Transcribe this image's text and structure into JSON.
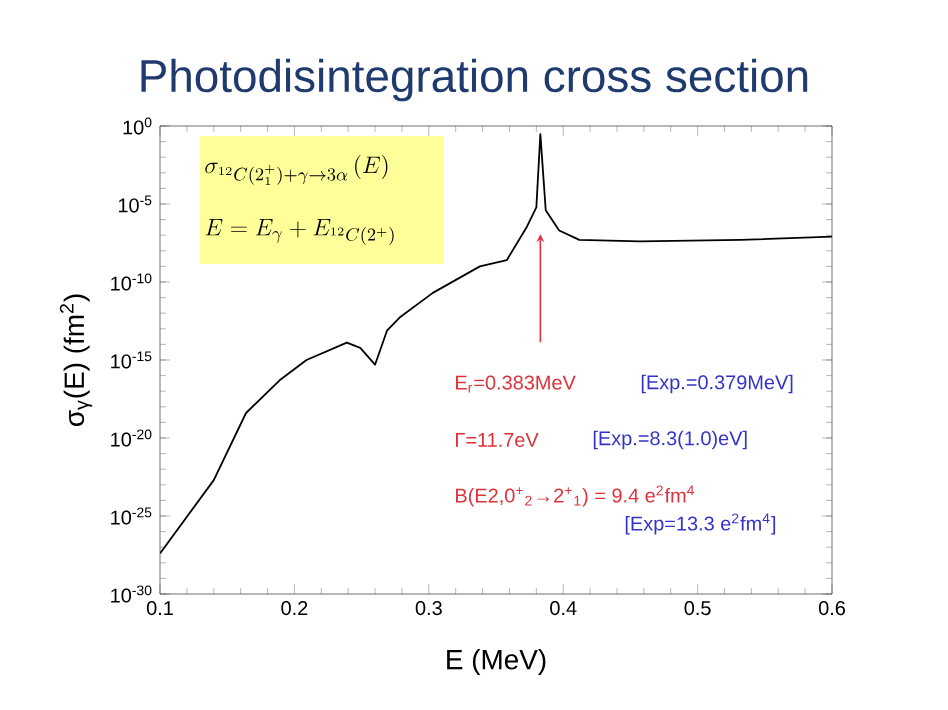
{
  "chart_data": {
    "type": "line",
    "title": "Photodisintegration cross section",
    "xlabel": "E (MeV)",
    "ylabel": "σ$_{γ}$(E)  (fm$^{2}$)",
    "x": [
      0.1,
      0.14,
      0.164,
      0.189,
      0.209,
      0.239,
      0.249,
      0.26,
      0.269,
      0.279,
      0.303,
      0.338,
      0.358,
      0.373,
      0.38,
      0.383,
      0.387,
      0.397,
      0.412,
      0.457,
      0.532,
      0.6
    ],
    "series": [
      {
        "color": "#000000",
        "values": [
          4e-28,
          2e-23,
          4e-19,
          5e-17,
          1e-15,
          1.3e-14,
          6e-15,
          5e-16,
          8e-14,
          6e-13,
          2e-11,
          1e-09,
          2.5e-09,
          3.5e-07,
          6e-06,
          0.3,
          4e-06,
          2e-07,
          5e-08,
          4e-08,
          5e-08,
          8e-08
        ]
      }
    ],
    "log": "y",
    "marker": "none",
    "line_style": "solid",
    "xlim": [
      0.1,
      0.6
    ],
    "ylim": [
      1e-30,
      1
    ],
    "xticks": [
      0.1,
      0.2,
      0.3,
      0.4,
      0.5,
      0.6
    ],
    "yticks": [
      {
        "value": 1e-30,
        "label": "10$^{-30}$"
      },
      {
        "value": 1e-25,
        "label": "10$^{-25}$"
      },
      {
        "value": 1e-20,
        "label": "10$^{-20}$"
      },
      {
        "value": 1e-15,
        "label": "10$^{-15}$"
      },
      {
        "value": 1e-10,
        "label": "10$^{-10}$"
      },
      {
        "value": 1e-05,
        "label": "10$^{-5}$"
      },
      {
        "value": 1,
        "label": "10$^{0}$"
      }
    ],
    "annotations": [
      "\\sigma_{{}^{12}C(2_1^{+})+\\gamma\\to 3\\alpha}\\left(E\\right)",
      "E=E_\\gamma+E_{{}^{12}C(2^{+})}",
      "E$_{r}$=0.383MeV",
      "[Exp.=0.379MeV]",
      "Γ=11.7eV",
      "[Exp.=8.3(1.0)eV]",
      "B(E2,0$^{+}$$_{2}$→2$^{+}$$_{1}$) = 9.4 e$^{2}$fm$^{4}$",
      "[Exp=13.3 e$^{2}$fm$^{4}$]"
    ]
  }
}
